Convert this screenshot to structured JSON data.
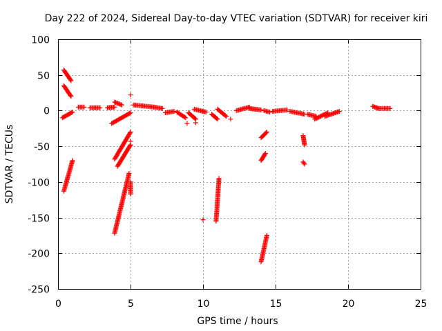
{
  "chart_data": {
    "type": "scatter",
    "title": "Day 222 of 2024, Sidereal Day-to-day VTEC variation (SDTVAR) for receiver kiri",
    "xlabel": "GPS time / hours",
    "ylabel": "SDTVAR / TECUs",
    "xlim": [
      0,
      25
    ],
    "ylim": [
      -250,
      100
    ],
    "x_ticks": [
      0,
      5,
      10,
      15,
      20,
      25
    ],
    "y_ticks": [
      -250,
      -200,
      -150,
      -100,
      -50,
      0,
      50,
      100
    ],
    "grid": true,
    "marker": "plus",
    "color": "#ff0000",
    "segments": [
      {
        "x": [
          0.4,
          0.9
        ],
        "y": [
          57,
          42
        ]
      },
      {
        "x": [
          0.4,
          0.9
        ],
        "y": [
          35,
          20
        ]
      },
      {
        "x": [
          0.3,
          1.0
        ],
        "y": [
          -10,
          -2
        ]
      },
      {
        "x": [
          0.4,
          1.0
        ],
        "y": [
          -113,
          -70
        ]
      },
      {
        "x": [
          1.4,
          1.8
        ],
        "y": [
          5,
          5
        ]
      },
      {
        "x": [
          2.2,
          2.9
        ],
        "y": [
          4,
          4
        ]
      },
      {
        "x": [
          3.4,
          3.9
        ],
        "y": [
          4,
          5
        ]
      },
      {
        "x": [
          3.9,
          4.4
        ],
        "y": [
          12,
          8
        ]
      },
      {
        "x": [
          3.7,
          5.0
        ],
        "y": [
          -18,
          -3
        ]
      },
      {
        "x": [
          3.9,
          5.0
        ],
        "y": [
          -68,
          -30
        ]
      },
      {
        "x": [
          4.1,
          5.0
        ],
        "y": [
          -78,
          -48
        ]
      },
      {
        "x": [
          3.9,
          4.9
        ],
        "y": [
          -172,
          -88
        ]
      },
      {
        "x": [
          5.0,
          5.0
        ],
        "y": [
          -100,
          -117
        ]
      },
      {
        "x": [
          5.2,
          6.6
        ],
        "y": [
          8,
          5
        ]
      },
      {
        "x": [
          6.6,
          7.2
        ],
        "y": [
          5,
          3
        ]
      },
      {
        "x": [
          7.4,
          8.0
        ],
        "y": [
          -3,
          -1
        ]
      },
      {
        "x": [
          8.2,
          8.8
        ],
        "y": [
          -2,
          -10
        ]
      },
      {
        "x": [
          9.0,
          9.5
        ],
        "y": [
          -3,
          -12
        ]
      },
      {
        "x": [
          9.4,
          10.2
        ],
        "y": [
          2,
          -2
        ]
      },
      {
        "x": [
          10.6,
          11.0
        ],
        "y": [
          -5,
          -12
        ]
      },
      {
        "x": [
          11.0,
          11.6
        ],
        "y": [
          2,
          -8
        ]
      },
      {
        "x": [
          11.1,
          10.9
        ],
        "y": [
          -95,
          -155
        ]
      },
      {
        "x": [
          12.3,
          13.2
        ],
        "y": [
          0,
          5
        ]
      },
      {
        "x": [
          13.2,
          14.0
        ],
        "y": [
          3,
          1
        ]
      },
      {
        "x": [
          14.2,
          14.6
        ],
        "y": [
          0,
          -2
        ]
      },
      {
        "x": [
          14.0,
          14.4
        ],
        "y": [
          -38,
          -30
        ]
      },
      {
        "x": [
          14.0,
          14.3
        ],
        "y": [
          -70,
          -60
        ]
      },
      {
        "x": [
          14.0,
          14.4
        ],
        "y": [
          -212,
          -175
        ]
      },
      {
        "x": [
          14.8,
          15.8
        ],
        "y": [
          -1,
          1
        ]
      },
      {
        "x": [
          16.0,
          17.0
        ],
        "y": [
          -1,
          -5
        ]
      },
      {
        "x": [
          17.2,
          17.8
        ],
        "y": [
          -5,
          -8
        ]
      },
      {
        "x": [
          17.7,
          18.6
        ],
        "y": [
          -12,
          -3
        ]
      },
      {
        "x": [
          18.4,
          19.4
        ],
        "y": [
          -8,
          -1
        ]
      },
      {
        "x": [
          16.9,
          17.0
        ],
        "y": [
          -35,
          -48
        ]
      },
      {
        "x": [
          16.9,
          17.0
        ],
        "y": [
          -72,
          -75
        ]
      },
      {
        "x": [
          21.7,
          22.1
        ],
        "y": [
          6,
          3
        ]
      },
      {
        "x": [
          22.1,
          22.9
        ],
        "y": [
          3,
          3
        ]
      }
    ],
    "points": [
      {
        "x": 5.0,
        "y": 22
      },
      {
        "x": 5.0,
        "y": -43
      },
      {
        "x": 10.0,
        "y": -153
      },
      {
        "x": 8.9,
        "y": -18
      },
      {
        "x": 9.5,
        "y": -17
      },
      {
        "x": 11.9,
        "y": -12
      }
    ]
  }
}
